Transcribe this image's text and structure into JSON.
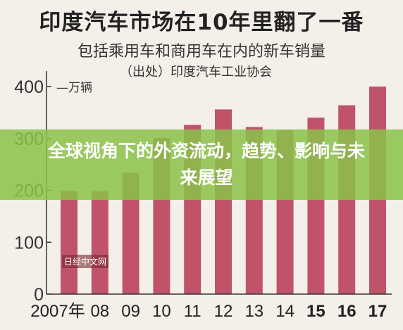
{
  "title": "印度汽车市场在10年里翻了一番",
  "subtitle": "包括乘用车和商用车在内的新车销量",
  "source": "（出处）印度汽车工业协会",
  "overlay_text": "全球视角下的外资流动，趋势、影响与未来展望",
  "watermark": "日经中文网",
  "colors": {
    "bar": "#c0536a",
    "axis": "#333333",
    "overlay": "#8bc34a"
  },
  "chart_data": {
    "type": "bar",
    "categories": [
      "2007年",
      "08",
      "09",
      "10",
      "11",
      "12",
      "13",
      "14",
      "15",
      "16",
      "17"
    ],
    "bold_categories": [
      "15",
      "16",
      "17"
    ],
    "values": [
      199,
      198,
      234,
      301,
      326,
      356,
      322,
      316,
      340,
      364,
      400
    ],
    "unit_label": "万辆",
    "ylim": [
      0,
      400
    ],
    "yticks": [
      0,
      100,
      200,
      300,
      400
    ],
    "grid": false,
    "title": "印度汽车市场在10年里翻了一番",
    "subtitle": "包括乘用车和商用车在内的新车销量"
  }
}
